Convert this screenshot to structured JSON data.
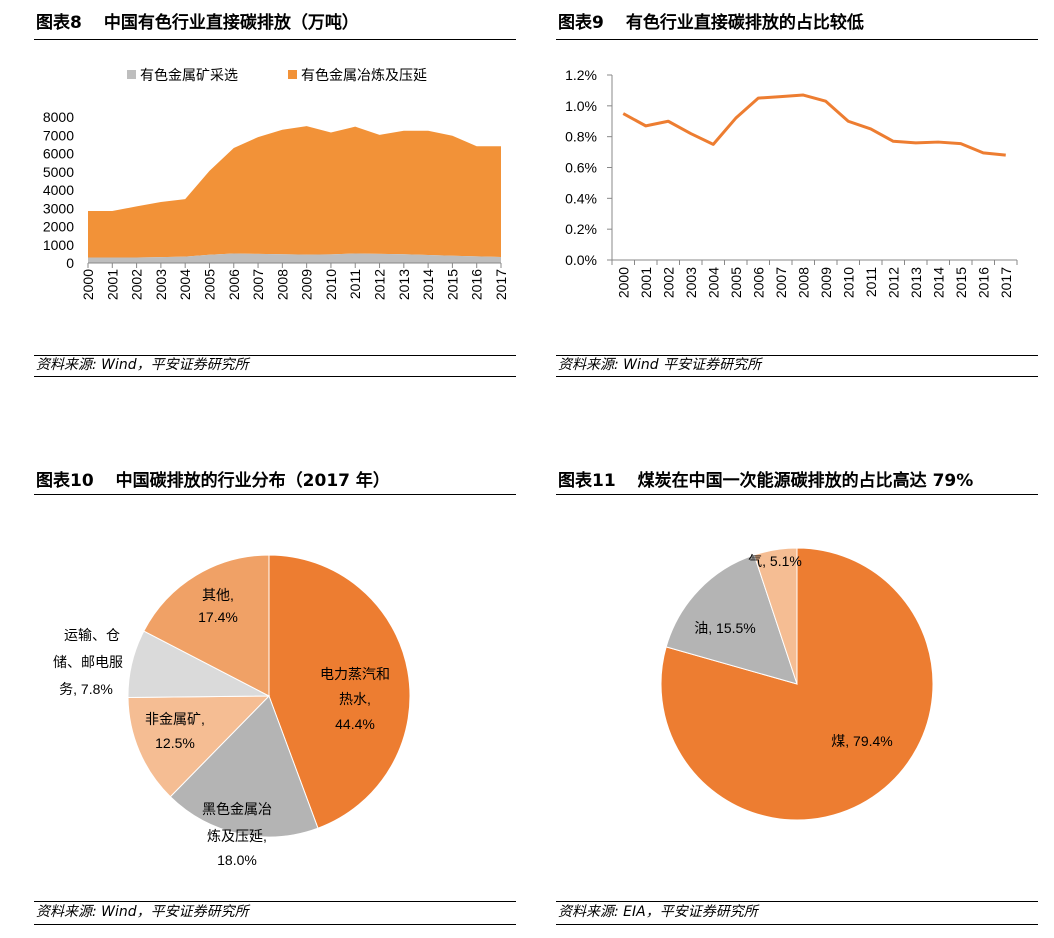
{
  "colors": {
    "orange": "#F29238",
    "gray": "#BEBEBE",
    "line": "#ED7D31"
  },
  "panels": [
    {
      "num": "图表8",
      "title": "中国有色行业直接碳排放（万吨）",
      "source": "资料来源: Wind，平安证券研究所"
    },
    {
      "num": "图表9",
      "title": "有色行业直接碳排放的占比较低",
      "source": "资料来源: Wind 平安证券研究所"
    },
    {
      "num": "图表10",
      "title": "中国碳排放的行业分布（2017 年）",
      "source": "资料来源: Wind，平安证券研究所"
    },
    {
      "num": "图表11",
      "title": "煤炭在中国一次能源碳排放的占比高达 79%",
      "source": "资料来源: EIA，平安证券研究所"
    }
  ],
  "chart_data": [
    {
      "type": "area",
      "stacked": true,
      "title": "中国有色行业直接碳排放（万吨）",
      "x": [
        "2000",
        "2001",
        "2002",
        "2003",
        "2004",
        "2005",
        "2006",
        "2007",
        "2008",
        "2009",
        "2010",
        "2011",
        "2012",
        "2013",
        "2014",
        "2015",
        "2016",
        "2017"
      ],
      "series": [
        {
          "name": "有色金属矿采选",
          "color": "#BEBEBE",
          "values": [
            300,
            300,
            300,
            320,
            350,
            450,
            520,
            500,
            480,
            460,
            470,
            520,
            500,
            480,
            440,
            400,
            360,
            330
          ]
        },
        {
          "name": "有色金属冶炼及压延",
          "color": "#F29238",
          "values": [
            2550,
            2550,
            2800,
            3020,
            3150,
            4600,
            5780,
            6400,
            6820,
            7040,
            6680,
            6950,
            6520,
            6770,
            6810,
            6570,
            6040,
            6070
          ]
        }
      ],
      "ylim": [
        0,
        8000
      ],
      "yticks": [
        "8000",
        "7000",
        "6000",
        "5000",
        "4000",
        "3000",
        "2000",
        "1000",
        "0"
      ],
      "legend": "top"
    },
    {
      "type": "line",
      "title": "有色行业直接碳排放的占比较低",
      "x": [
        "2000",
        "2001",
        "2002",
        "2003",
        "2004",
        "2005",
        "2006",
        "2007",
        "2008",
        "2009",
        "2010",
        "2011",
        "2012",
        "2013",
        "2014",
        "2015",
        "2016",
        "2017"
      ],
      "values": [
        0.95,
        0.87,
        0.9,
        0.82,
        0.75,
        0.92,
        1.05,
        1.06,
        1.07,
        1.03,
        0.9,
        0.85,
        0.77,
        0.76,
        0.765,
        0.755,
        0.695,
        0.68
      ],
      "ylim": [
        0,
        1.2
      ],
      "yticks": [
        "1.2%",
        "1.0%",
        "0.8%",
        "0.6%",
        "0.4%",
        "0.2%",
        "0.0%"
      ],
      "unit": "%"
    },
    {
      "type": "pie",
      "title": "中国碳排放的行业分布（2017 年）",
      "slices": [
        {
          "label1": "电力蒸汽和",
          "label2": "热水,",
          "pct_label": "44.4%",
          "value": 44.4,
          "color": "#ED7D31"
        },
        {
          "label1": "黑色金属冶",
          "label2": "炼及压延,",
          "pct_label": "18.0%",
          "value": 18.0,
          "color": "#B4B4B4"
        },
        {
          "label1": "非金属矿,",
          "label2": "",
          "pct_label": "12.5%",
          "value": 12.5,
          "color": "#F5BD93"
        },
        {
          "label1": "运输、仓",
          "label2": "储、邮电服",
          "pct_label": "务, 7.8%",
          "value": 7.8,
          "color": "#DADADA"
        },
        {
          "label1": "其他,",
          "label2": "",
          "pct_label": "17.4%",
          "value": 17.4,
          "color": "#F0A166"
        }
      ]
    },
    {
      "type": "pie",
      "title": "煤炭在中国一次能源碳排放的占比高达 79%",
      "slices": [
        {
          "label": "煤, 79.4%",
          "value": 79.4,
          "color": "#ED7D31"
        },
        {
          "label": "油, 15.5%",
          "value": 15.5,
          "color": "#B4B4B4"
        },
        {
          "label": "气, 5.1%",
          "value": 5.1,
          "color": "#F5BD93"
        }
      ]
    }
  ]
}
